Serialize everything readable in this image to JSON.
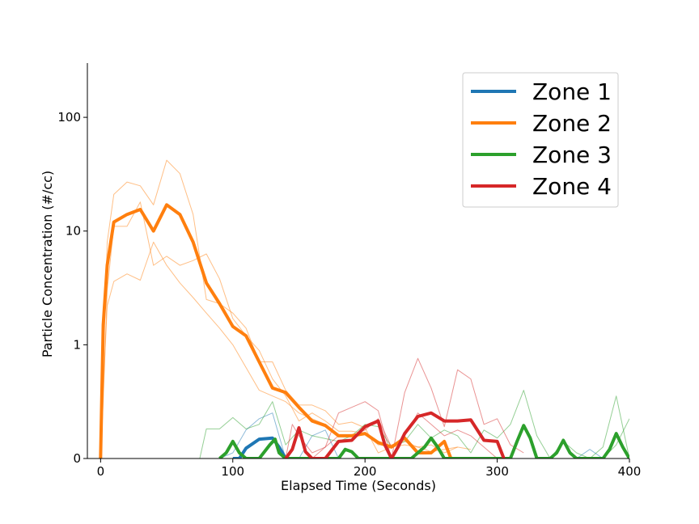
{
  "chart_data": {
    "type": "line",
    "title": "",
    "xlabel": "Elapsed Time (Seconds)",
    "ylabel": "Particle Concentration (#/cc)",
    "xlim": [
      -10,
      400
    ],
    "ylim": [
      0,
      300
    ],
    "yscale": "symlog",
    "symlog_linthresh": 1,
    "xticks": [
      0,
      100,
      200,
      300,
      400
    ],
    "yticks": [
      0,
      1,
      10,
      100
    ],
    "ytick_labels": [
      "0",
      "1",
      "10",
      "100"
    ],
    "grid": false,
    "legend_position": "top-right",
    "series": [
      {
        "name": "Zone 1",
        "color": "#1f77b4",
        "x": [
          100,
          105,
          110,
          120,
          130,
          135,
          140
        ],
        "y": [
          0,
          0,
          0.09,
          0.17,
          0.18,
          0.1,
          0
        ],
        "replicates": [
          {
            "x": [
              90,
              100,
              110,
              120,
              130,
              140
            ],
            "y": [
              0,
              0.05,
              0.25,
              0.35,
              0.4,
              0
            ]
          },
          {
            "x": [
              150,
              160,
              170,
              180
            ],
            "y": [
              0,
              0.2,
              0.25,
              0
            ]
          },
          {
            "x": [
              360,
              370,
              380
            ],
            "y": [
              0,
              0.08,
              0
            ]
          }
        ]
      },
      {
        "name": "Zone 2",
        "color": "#ff7f0e",
        "x": [
          0,
          2,
          5,
          10,
          20,
          30,
          40,
          50,
          60,
          70,
          80,
          90,
          100,
          110,
          120,
          130,
          140,
          150,
          160,
          170,
          180,
          190,
          200,
          210,
          220,
          230,
          240,
          250,
          260,
          265
        ],
        "y": [
          0,
          1.5,
          5,
          12,
          14,
          15.5,
          10,
          17,
          14,
          8,
          3.5,
          2.3,
          1.45,
          1.2,
          0.85,
          0.62,
          0.58,
          0.45,
          0.33,
          0.29,
          0.2,
          0.2,
          0.22,
          0.14,
          0.1,
          0.18,
          0.05,
          0.05,
          0.15,
          0
        ],
        "replicates": [
          {
            "x": [
              0,
              2,
              5,
              10,
              20,
              30,
              40,
              50,
              60,
              70,
              80,
              90,
              100,
              110,
              120,
              130,
              140,
              150,
              160,
              170,
              180,
              190,
              200,
              210,
              220,
              230,
              240,
              250,
              260,
              270
            ],
            "y": [
              0,
              0.8,
              8,
              21,
              27,
              25,
              17,
              42,
              32,
              14,
              2.5,
              2.3,
              1.9,
              1.4,
              0.85,
              0.85,
              0.6,
              0.47,
              0.47,
              0.42,
              0.3,
              0.32,
              0.27,
              0.05,
              0.1,
              0.12,
              0.1,
              0.12,
              0.05,
              0.1
            ]
          },
          {
            "x": [
              0,
              2,
              5,
              10,
              20,
              30,
              40,
              50,
              60,
              70,
              80,
              90,
              100,
              110,
              120,
              130,
              140,
              150,
              160,
              170,
              180,
              190,
              200,
              210,
              220,
              230,
              240,
              250,
              260,
              270,
              280
            ],
            "y": [
              0,
              0.5,
              3,
              11,
              11,
              18,
              5,
              6,
              5,
              5.5,
              6.3,
              3.8,
              1.7,
              1.2,
              0.95,
              0.7,
              0.55,
              0.33,
              0.4,
              0.33,
              0.24,
              0.24,
              0.22,
              0.12,
              0.12,
              0.15,
              0.1,
              0.06,
              0.08,
              0.1,
              0.08
            ]
          },
          {
            "x": [
              0,
              2,
              5,
              10,
              20,
              30,
              40,
              50,
              60,
              70,
              80,
              90,
              100,
              110,
              120,
              130,
              140,
              150,
              160,
              170
            ],
            "y": [
              0,
              0.6,
              2.2,
              3.6,
              4.2,
              3.7,
              8,
              5,
              3.5,
              2.6,
              1.9,
              1.4,
              1.0,
              0.8,
              0.6,
              0.55,
              0.5,
              0.4,
              0.35,
              0.3
            ]
          }
        ]
      },
      {
        "name": "Zone 3",
        "color": "#2ca02c",
        "x": [
          90,
          95,
          100,
          105,
          110,
          120,
          128,
          132,
          135,
          140,
          150,
          180,
          185,
          190,
          195,
          235,
          240,
          245,
          250,
          255,
          260,
          310,
          315,
          320,
          325,
          330,
          340,
          345,
          350,
          355,
          360,
          380,
          385,
          390,
          395,
          400
        ],
        "y": [
          0,
          0.05,
          0.15,
          0.05,
          0,
          0,
          0.12,
          0.17,
          0.05,
          0,
          0,
          0,
          0.08,
          0.06,
          0,
          0,
          0.05,
          0.1,
          0.18,
          0.1,
          0,
          0,
          0.15,
          0.29,
          0.18,
          0,
          0,
          0.05,
          0.16,
          0.05,
          0,
          0,
          0.08,
          0.22,
          0.1,
          0
        ],
        "replicates": [
          {
            "x": [
              75,
              80,
              90,
              100,
              110,
              120,
              130,
              140,
              150,
              160,
              180,
              190,
              200,
              210,
              220,
              230,
              240,
              250,
              260,
              270,
              280,
              290,
              300,
              310,
              320,
              330,
              340,
              350,
              360,
              370,
              380,
              390,
              400
            ],
            "y": [
              0,
              0.26,
              0.26,
              0.36,
              0.26,
              0.3,
              0.5,
              0.12,
              0.25,
              0.2,
              0.15,
              0.2,
              0.3,
              0.28,
              0.1,
              0.15,
              0.3,
              0.18,
              0.25,
              0.2,
              0.05,
              0.25,
              0.18,
              0.3,
              0.6,
              0.2,
              0,
              0.15,
              0.05,
              0,
              0.1,
              0.55,
              0
            ]
          },
          {
            "x": [
              380,
              390,
              400
            ],
            "y": [
              0,
              0.12,
              0.35
            ]
          }
        ]
      },
      {
        "name": "Zone 4",
        "color": "#d62728",
        "x": [
          140,
          145,
          150,
          155,
          160,
          170,
          180,
          190,
          200,
          210,
          215,
          220,
          225,
          230,
          240,
          250,
          260,
          270,
          280,
          290,
          300,
          305
        ],
        "y": [
          0,
          0.08,
          0.27,
          0.06,
          0,
          0,
          0.15,
          0.16,
          0.28,
          0.33,
          0.12,
          0,
          0.1,
          0.22,
          0.37,
          0.4,
          0.33,
          0.33,
          0.34,
          0.16,
          0.15,
          0
        ],
        "replicates": [
          {
            "x": [
              140,
              145,
              150,
              160,
              170,
              180,
              190,
              200,
              210,
              220,
              230,
              240,
              250,
              260,
              270,
              280,
              290,
              300,
              310,
              320
            ],
            "y": [
              0,
              0.3,
              0.2,
              0.05,
              0.1,
              0.4,
              0.45,
              0.5,
              0.42,
              0,
              0.58,
              0.88,
              0.62,
              0.28,
              0.78,
              0.7,
              0.3,
              0.35,
              0.12,
              0.05
            ]
          },
          {
            "x": [
              160,
              170,
              180,
              190,
              200,
              210,
              220,
              230,
              240,
              250,
              260,
              270,
              280,
              290,
              300
            ],
            "y": [
              0,
              0.1,
              0.2,
              0.2,
              0.25,
              0.35,
              0.1,
              0.2,
              0.4,
              0.3,
              0.2,
              0.25,
              0.2,
              0.1,
              0
            ]
          },
          {
            "x": [
              380,
              390,
              400
            ],
            "y": [
              0,
              0.2,
              0
            ]
          }
        ]
      }
    ]
  }
}
